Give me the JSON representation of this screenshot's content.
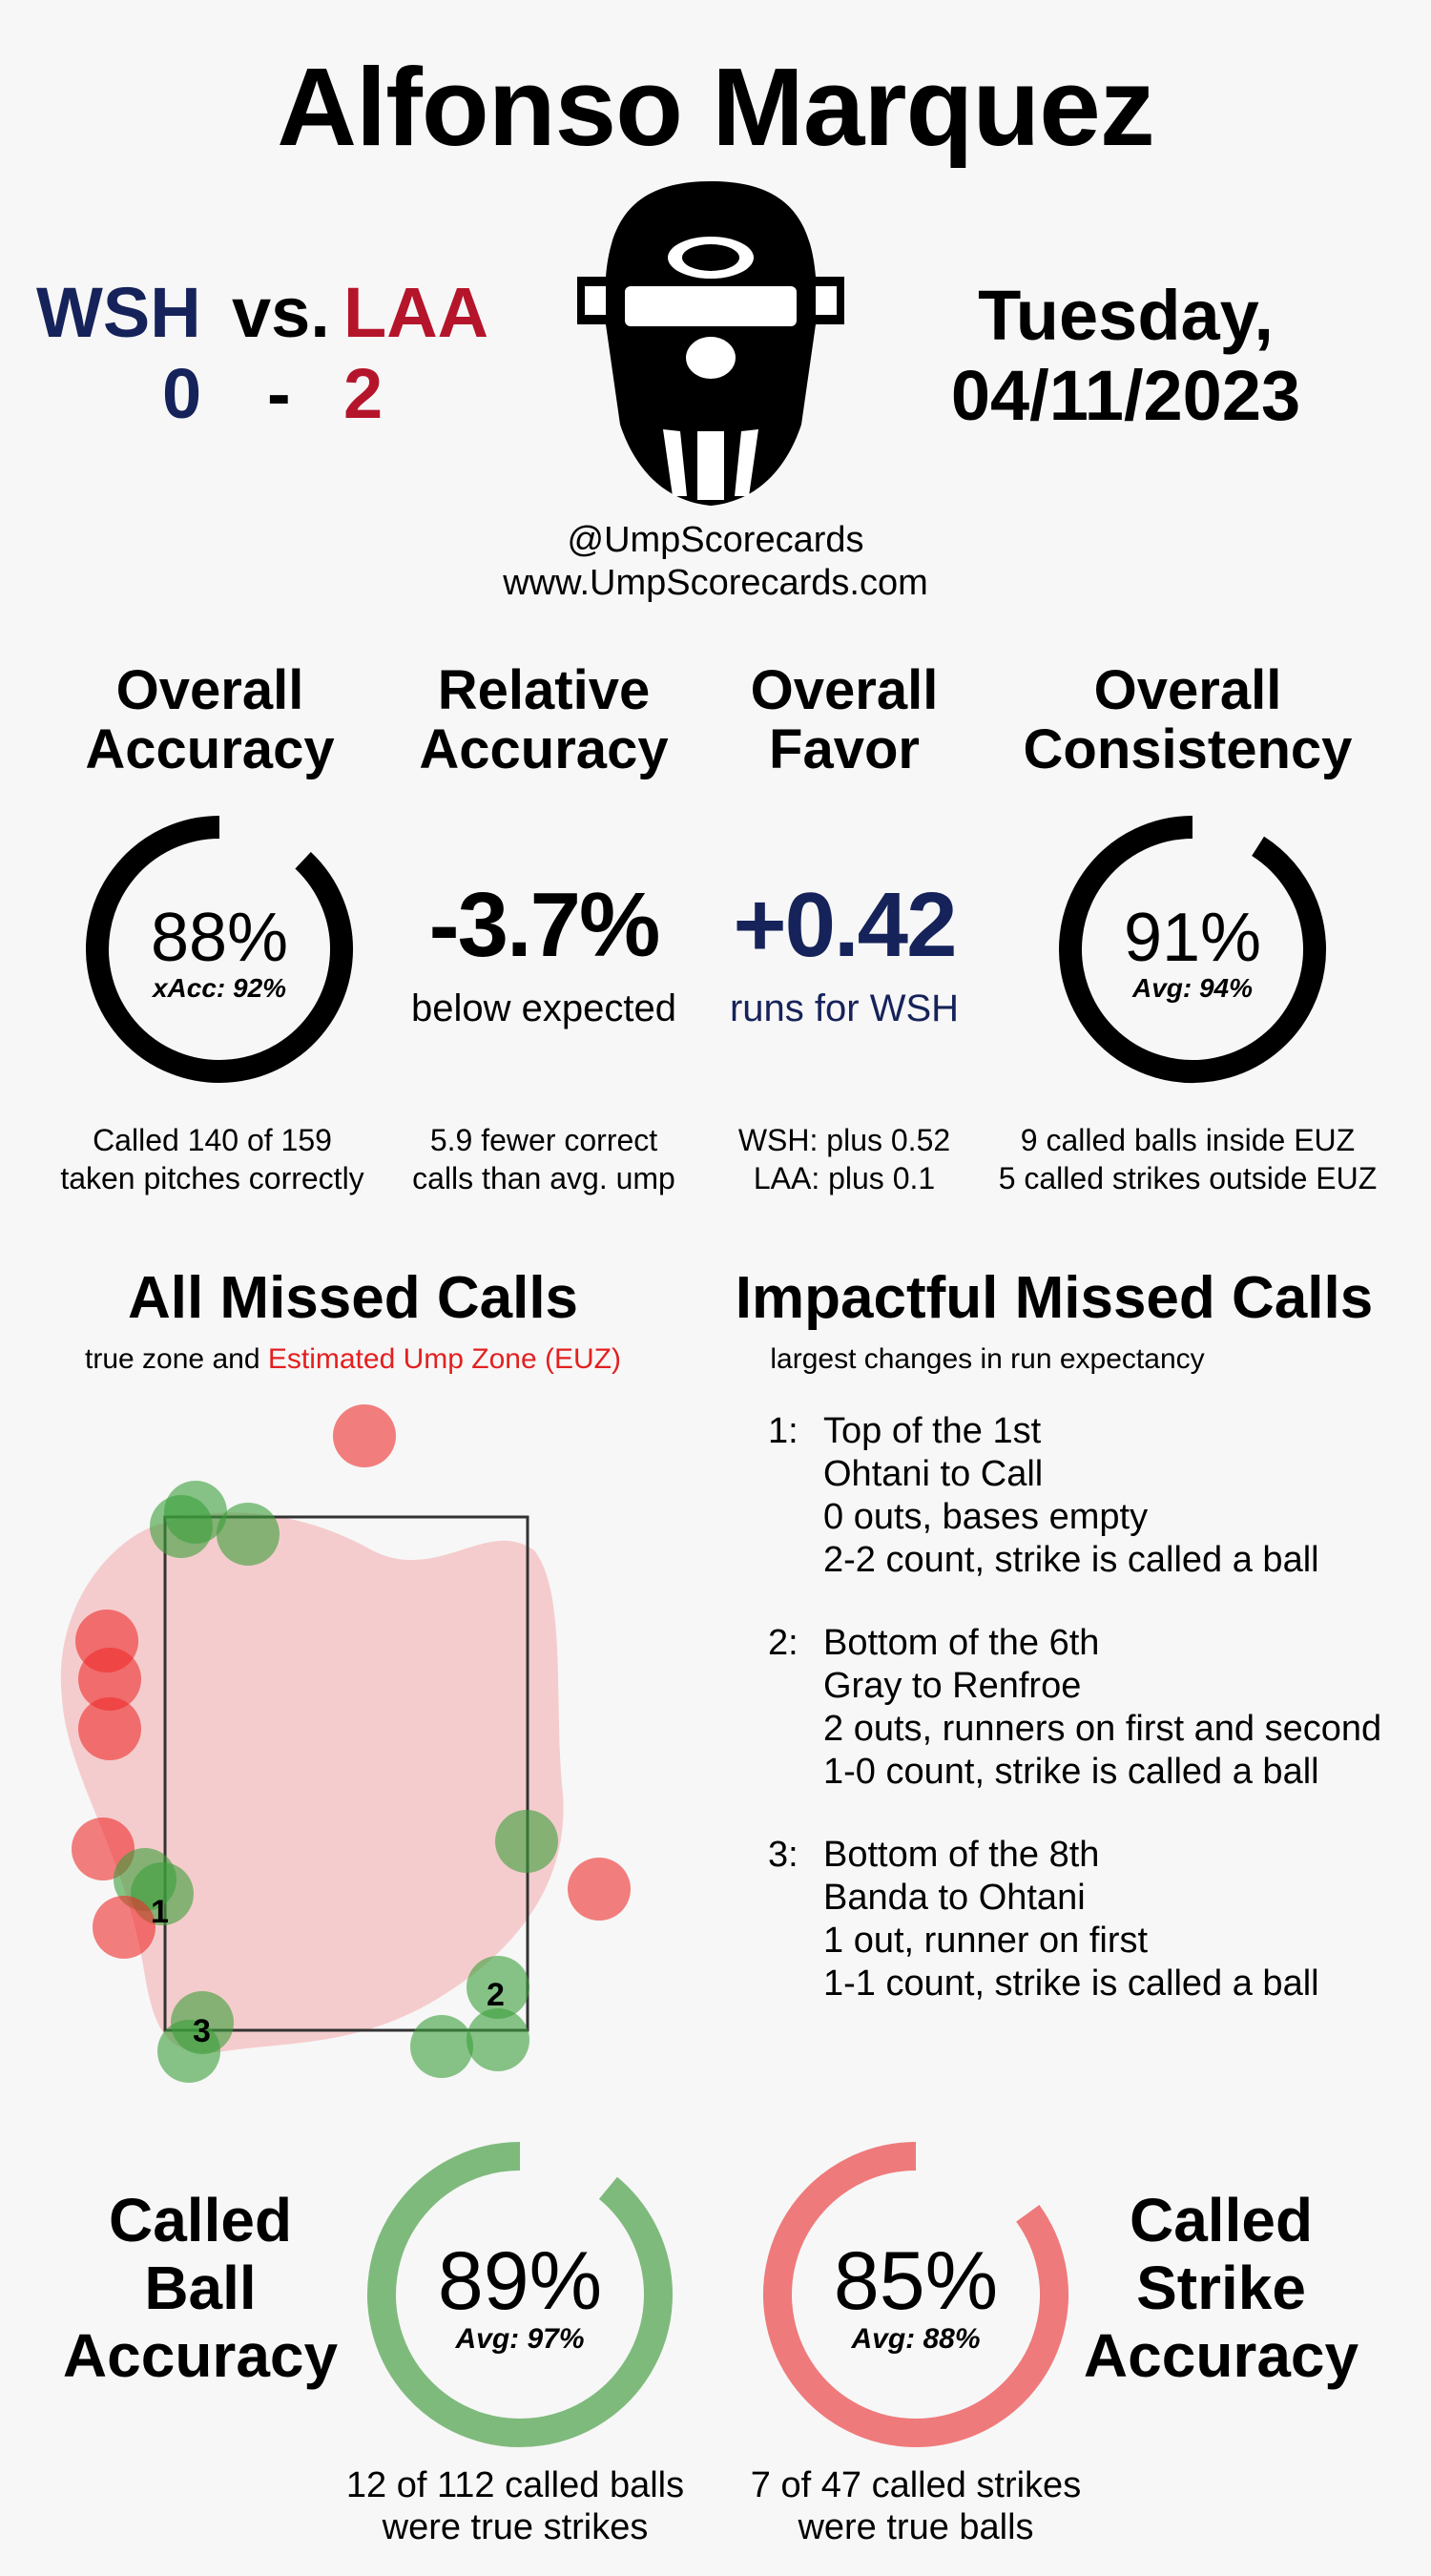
{
  "umpire_name": "Alfonso Marquez",
  "game": {
    "away_team": "WSH",
    "vs": "vs.",
    "home_team": "LAA",
    "away_score": "0",
    "dash": "-",
    "home_score": "2",
    "day": "Tuesday,",
    "date": "04/11/2023",
    "colors": {
      "away": "#16235a",
      "home": "#b5152b"
    }
  },
  "credits": {
    "handle": "@UmpScorecards",
    "site": "www.UmpScorecards.com"
  },
  "logo_icon": "umpire-mask-icon",
  "stats": {
    "overall_accuracy": {
      "title1": "Overall",
      "title2": "Accuracy",
      "value": "88%",
      "sub": "xAcc: 92%",
      "ring_fraction": 0.88,
      "note1": "Called 140 of 159",
      "note2": "taken pitches correctly"
    },
    "relative_accuracy": {
      "title1": "Relative",
      "title2": "Accuracy",
      "value": "-3.7%",
      "sub": "below expected",
      "note1": "5.9 fewer correct",
      "note2": "calls than avg. ump"
    },
    "overall_favor": {
      "title1": "Overall",
      "title2": "Favor",
      "value": "+0.42",
      "sub": "runs for WSH",
      "note1": "WSH: plus 0.52",
      "note2": "LAA: plus 0.1"
    },
    "overall_consistency": {
      "title1": "Overall",
      "title2": "Consistency",
      "value": "91%",
      "sub": "Avg: 94%",
      "ring_fraction": 0.91,
      "note1": "9 called balls inside EUZ",
      "note2": "5 called strikes outside EUZ"
    }
  },
  "missed_calls": {
    "title": "All Missed Calls",
    "subtitle_plain": "true zone and",
    "subtitle_red": "Estimated Ump Zone (EUZ)",
    "colors": {
      "euz": "#f4c4c6",
      "ball_missed": "#3a9e3a",
      "strike_missed": "#ee2c2c"
    },
    "labels": [
      "1",
      "2",
      "3"
    ]
  },
  "impactful": {
    "title": "Impactful Missed Calls",
    "subtitle": "largest changes in run expectancy",
    "items": [
      {
        "num": "1:",
        "l1": "Top of the 1st",
        "l2": "Ohtani to Call",
        "l3": "0 outs, bases empty",
        "l4": "2-2 count, strike is called a ball"
      },
      {
        "num": "2:",
        "l1": "Bottom of the 6th",
        "l2": "Gray to Renfroe",
        "l3": "2 outs, runners on first and second",
        "l4": "1-0 count, strike is called a ball"
      },
      {
        "num": "3:",
        "l1": "Bottom of the 8th",
        "l2": "Banda to Ohtani",
        "l3": "1 out, runner on first",
        "l4": "1-1 count, strike is called a ball"
      }
    ]
  },
  "called_ball": {
    "title1": "Called",
    "title2": "Ball",
    "title3": "Accuracy",
    "value": "89%",
    "sub": "Avg: 97%",
    "ring_fraction": 0.89,
    "color": "#7fba7d",
    "note1": "12 of 112 called balls",
    "note2": "were true strikes"
  },
  "called_strike": {
    "title1": "Called",
    "title2": "Strike",
    "title3": "Accuracy",
    "value": "85%",
    "sub": "Avg: 88%",
    "ring_fraction": 0.85,
    "color": "#ef7a7b",
    "note1": "7 of 47 called strikes",
    "note2": "were true balls"
  }
}
